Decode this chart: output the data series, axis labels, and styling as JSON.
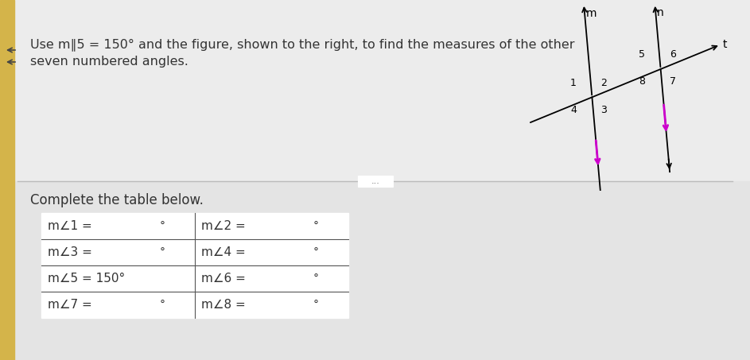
{
  "title_line1": "Use m∥5 = 150° and the figure, shown to the right, to find the measures of the other",
  "title_line2": "seven numbered angles.",
  "complete_text": "Complete the table below.",
  "top_bg": "#ececec",
  "bottom_bg": "#e4e4e4",
  "fig_bg": "#ececec",
  "line_color": "#222222",
  "magenta_color": "#cc00cc",
  "text_color": "#333333",
  "table_border": "#555555",
  "cell_fill": "#ffffff",
  "divider_color": "#bbbbbb",
  "left_yellow_bar": "#d4b44a",
  "angle_symbol": "∠"
}
